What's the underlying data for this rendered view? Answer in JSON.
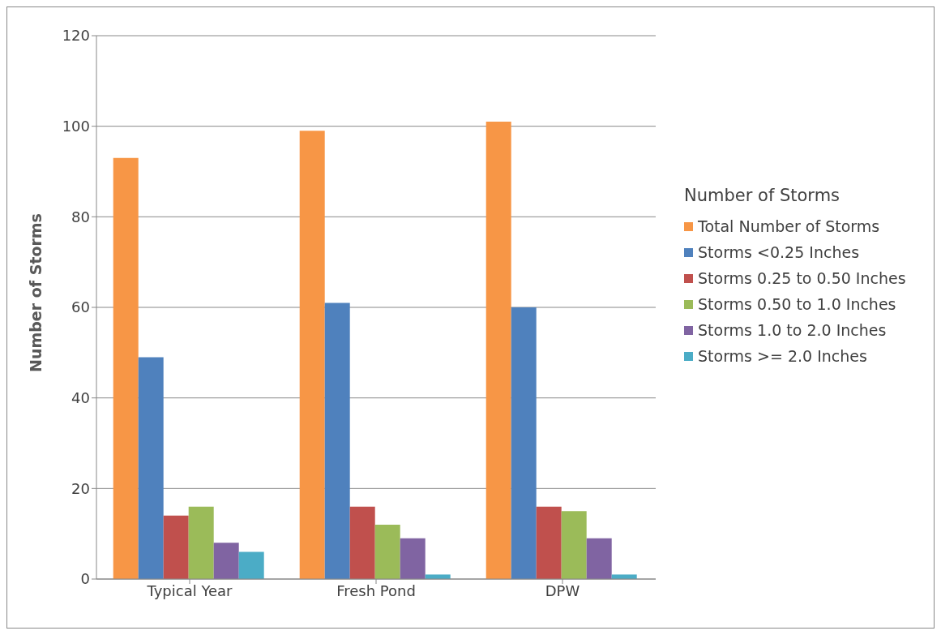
{
  "chart_data": {
    "type": "bar",
    "ylabel": "Number of Storms",
    "legend_title": "Number of Storms",
    "categories": [
      "Typical Year",
      "Fresh Pond",
      "DPW"
    ],
    "series": [
      {
        "name": "Total Number of Storms",
        "color": "#f79646",
        "values": [
          93,
          99,
          101
        ]
      },
      {
        "name": "Storms <0.25 Inches",
        "color": "#4f81bd",
        "values": [
          49,
          61,
          60
        ]
      },
      {
        "name": "Storms 0.25 to 0.50 Inches",
        "color": "#c0504d",
        "values": [
          14,
          16,
          16
        ]
      },
      {
        "name": "Storms 0.50 to 1.0 Inches",
        "color": "#9bbb59",
        "values": [
          16,
          12,
          15
        ]
      },
      {
        "name": "Storms 1.0 to 2.0 Inches",
        "color": "#8064a2",
        "values": [
          8,
          9,
          9
        ]
      },
      {
        "name": "Storms >= 2.0 Inches",
        "color": "#4bacc6",
        "values": [
          6,
          1,
          1
        ]
      }
    ],
    "ylim": [
      0,
      120
    ],
    "yticks": [
      0,
      20,
      40,
      60,
      80,
      100,
      120
    ],
    "grid": "y",
    "legend": "right"
  }
}
